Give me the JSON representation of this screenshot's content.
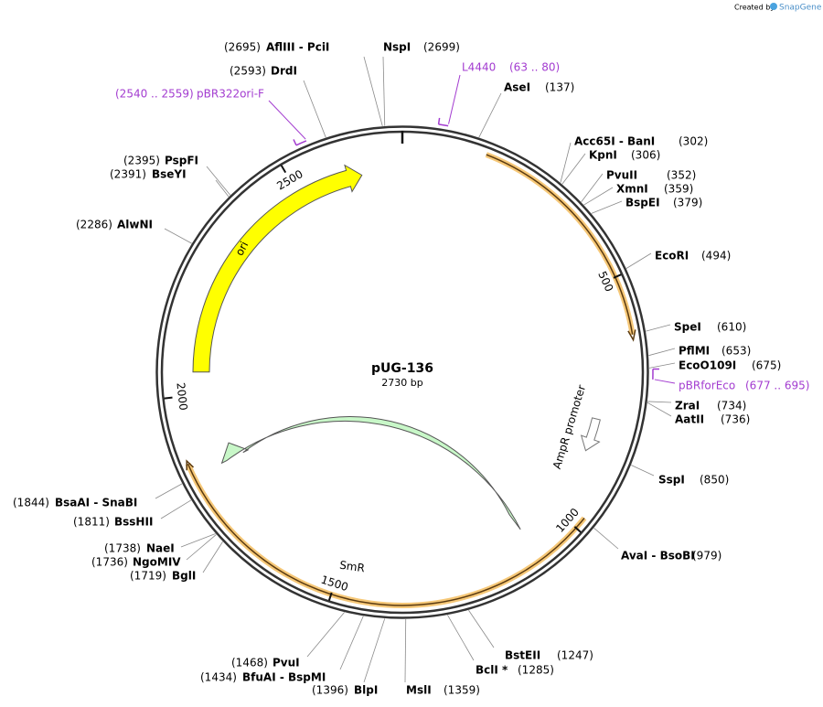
{
  "header": {
    "credit": "Created by",
    "brand": "SnapGene"
  },
  "plasmid": {
    "name": "pUG-136",
    "size_label": "2730 bp",
    "length": 2730
  },
  "ticks": [
    500,
    1000,
    1500,
    2000,
    2500
  ],
  "features": [
    "ori",
    "SmR",
    "AmpR promoter"
  ],
  "sites": [
    {
      "name": "NspI",
      "site": "(2699)",
      "position": 2699
    },
    {
      "name": "AflIII  - PciI",
      "site": "(2695)",
      "position": 2695
    },
    {
      "name": "DrdI",
      "site": "(2593)",
      "position": 2593
    },
    {
      "name": "PspFI",
      "site": "(2395)",
      "position": 2395
    },
    {
      "name": "BseYI",
      "site": "(2391)",
      "position": 2391
    },
    {
      "name": "AlwNI",
      "site": "(2286)",
      "position": 2286
    },
    {
      "name": "BsaAI  - SnaBI",
      "site": "(1844)",
      "position": 1844
    },
    {
      "name": "BssHII",
      "site": "(1811)",
      "position": 1811
    },
    {
      "name": "NaeI",
      "site": "(1738)",
      "position": 1738
    },
    {
      "name": "NgoMIV",
      "site": "(1736)",
      "position": 1736
    },
    {
      "name": "BglI",
      "site": "(1719)",
      "position": 1719
    },
    {
      "name": "PvuI",
      "site": "(1468)",
      "position": 1468
    },
    {
      "name": "BfuAI  - BspMI",
      "site": "(1434)",
      "position": 1434
    },
    {
      "name": "BlpI",
      "site": "(1396)",
      "position": 1396
    },
    {
      "name": "MslI",
      "site": "(1359)",
      "position": 1359
    },
    {
      "name": "BclI *",
      "site": "(1285)",
      "position": 1285
    },
    {
      "name": "BstEII",
      "site": "(1247)",
      "position": 1247
    },
    {
      "name": "AvaI  - BsoBI",
      "site": "(979)",
      "position": 979
    },
    {
      "name": "SspI",
      "site": "(850)",
      "position": 850
    },
    {
      "name": "AatII",
      "site": "(736)",
      "position": 736
    },
    {
      "name": "ZraI",
      "site": "(734)",
      "position": 734
    },
    {
      "name": "EcoO109I",
      "site": "(675)",
      "position": 675
    },
    {
      "name": "PflMI",
      "site": "(653)",
      "position": 653
    },
    {
      "name": "SpeI",
      "site": "(610)",
      "position": 610
    },
    {
      "name": "EcoRI",
      "site": "(494)",
      "position": 494
    },
    {
      "name": "BspEI",
      "site": "(379)",
      "position": 379
    },
    {
      "name": "XmnI",
      "site": "(359)",
      "position": 359
    },
    {
      "name": "PvuII",
      "site": "(352)",
      "position": 352
    },
    {
      "name": "KpnI",
      "site": "(306)",
      "position": 306
    },
    {
      "name": "Acc65I  - BanI",
      "site": "(302)",
      "position": 302
    },
    {
      "name": "AseI",
      "site": "(137)",
      "position": 137
    }
  ],
  "primers": [
    {
      "name": "L4440",
      "range": "(63 .. 80)",
      "start": 63,
      "end": 80
    },
    {
      "name": "pBR322ori-F",
      "range": "(2540 .. 2559)",
      "start": 2540,
      "end": 2559
    },
    {
      "name": "pBRforEco",
      "range": "(677 .. 695)",
      "start": 677,
      "end": 695
    }
  ]
}
